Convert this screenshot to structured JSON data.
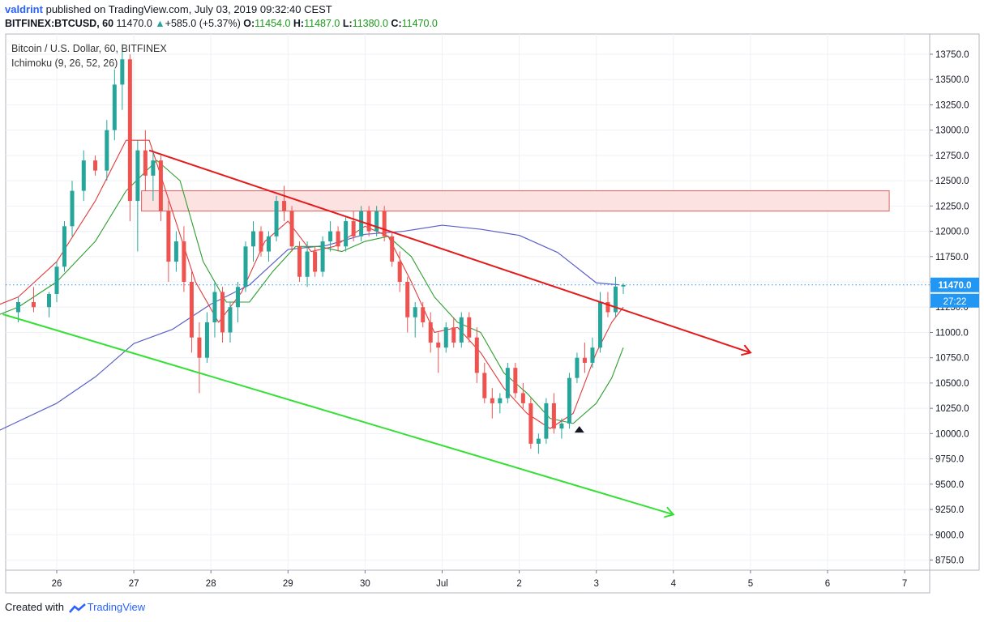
{
  "header": {
    "user": "valdrint",
    "published_text": "published on TradingView.com, July 03, 2019 09:32:40 CEST",
    "symbol": "BITFINEX:BTCUSD, 60",
    "last": "11470.0",
    "change": "+585.0 (+5.37%)",
    "open_label": "O:",
    "open": "11454.0",
    "high_label": "H:",
    "high": "11487.0",
    "low_label": "L:",
    "low": "11380.0",
    "close_label": "C:",
    "close": "11470.0"
  },
  "legend": {
    "title": "Bitcoin / U.S. Dollar, 60, BITFINEX",
    "indicator": "Ichimoku (9, 26, 52, 26)"
  },
  "price_label": "11470.0",
  "countdown_label": "27:22",
  "footer": {
    "created_with": "Created with",
    "brand": "TradingView"
  },
  "colors": {
    "up": "#26a69a",
    "down": "#ef5350",
    "resistance_line": "#e51a1a",
    "support_line": "#35e035",
    "ma_blue": "#5b5fc7",
    "tenkan": "#e03c3c",
    "kijun": "#2e9e2e",
    "zone_fill": "#fde2e2",
    "zone_border": "#e06060",
    "price_line": "#2196f3"
  },
  "chart_data": {
    "type": "candlestick",
    "title": "Bitcoin / U.S. Dollar, 60, BITFINEX",
    "ylim": [
      8650,
      13950
    ],
    "y_ticks": [
      "13750.0",
      "13500.0",
      "13250.0",
      "13000.0",
      "12750.0",
      "12500.0",
      "12250.0",
      "12000.0",
      "11750.0",
      "11500.0",
      "11250.0",
      "11000.0",
      "10750.0",
      "10500.0",
      "10250.0",
      "10000.0",
      "9750.0",
      "9500.0",
      "9250.0",
      "9000.0",
      "8750.0"
    ],
    "x_ticks": [
      "26",
      "27",
      "28",
      "29",
      "30",
      "Jul",
      "2",
      "3",
      "4",
      "5",
      "6",
      "7"
    ],
    "last_price": 11470.0,
    "candles": [
      {
        "d": 25.5,
        "o": 11200,
        "h": 11350,
        "l": 11100,
        "c": 11300
      },
      {
        "d": 25.7,
        "o": 11300,
        "h": 11450,
        "l": 11200,
        "c": 11250
      },
      {
        "d": 25.9,
        "o": 11250,
        "h": 11400,
        "l": 11150,
        "c": 11380
      },
      {
        "d": 26.0,
        "o": 11380,
        "h": 11700,
        "l": 11300,
        "c": 11650
      },
      {
        "d": 26.1,
        "o": 11650,
        "h": 12100,
        "l": 11600,
        "c": 12050
      },
      {
        "d": 26.2,
        "o": 12050,
        "h": 12500,
        "l": 11950,
        "c": 12400
      },
      {
        "d": 26.35,
        "o": 12400,
        "h": 12800,
        "l": 12300,
        "c": 12700
      },
      {
        "d": 26.5,
        "o": 12700,
        "h": 12750,
        "l": 12550,
        "c": 12600
      },
      {
        "d": 26.65,
        "o": 12600,
        "h": 13100,
        "l": 12500,
        "c": 13000
      },
      {
        "d": 26.75,
        "o": 13000,
        "h": 13600,
        "l": 12900,
        "c": 13450
      },
      {
        "d": 26.85,
        "o": 13450,
        "h": 13850,
        "l": 13200,
        "c": 13700
      },
      {
        "d": 26.95,
        "o": 13700,
        "h": 13750,
        "l": 12100,
        "c": 12300
      },
      {
        "d": 27.05,
        "o": 12300,
        "h": 12900,
        "l": 11800,
        "c": 12800
      },
      {
        "d": 27.15,
        "o": 12800,
        "h": 13000,
        "l": 12400,
        "c": 12550
      },
      {
        "d": 27.25,
        "o": 12550,
        "h": 12800,
        "l": 12300,
        "c": 12700
      },
      {
        "d": 27.35,
        "o": 12700,
        "h": 12750,
        "l": 12100,
        "c": 12200
      },
      {
        "d": 27.45,
        "o": 12200,
        "h": 12300,
        "l": 11500,
        "c": 11700
      },
      {
        "d": 27.55,
        "o": 11700,
        "h": 12000,
        "l": 11600,
        "c": 11900
      },
      {
        "d": 27.65,
        "o": 11900,
        "h": 12050,
        "l": 11400,
        "c": 11500
      },
      {
        "d": 27.75,
        "o": 11500,
        "h": 11600,
        "l": 10800,
        "c": 10950
      },
      {
        "d": 27.85,
        "o": 10950,
        "h": 11100,
        "l": 10400,
        "c": 10750
      },
      {
        "d": 27.95,
        "o": 10750,
        "h": 11200,
        "l": 10700,
        "c": 11100
      },
      {
        "d": 28.05,
        "o": 11100,
        "h": 11500,
        "l": 10950,
        "c": 11400
      },
      {
        "d": 28.15,
        "o": 11400,
        "h": 11450,
        "l": 10900,
        "c": 11000
      },
      {
        "d": 28.25,
        "o": 11000,
        "h": 11300,
        "l": 10900,
        "c": 11250
      },
      {
        "d": 28.35,
        "o": 11250,
        "h": 11500,
        "l": 11100,
        "c": 11450
      },
      {
        "d": 28.45,
        "o": 11450,
        "h": 11900,
        "l": 11400,
        "c": 11850
      },
      {
        "d": 28.55,
        "o": 11850,
        "h": 12100,
        "l": 11700,
        "c": 12000
      },
      {
        "d": 28.65,
        "o": 12000,
        "h": 12050,
        "l": 11750,
        "c": 11800
      },
      {
        "d": 28.75,
        "o": 11800,
        "h": 12000,
        "l": 11700,
        "c": 11950
      },
      {
        "d": 28.85,
        "o": 11950,
        "h": 12350,
        "l": 11900,
        "c": 12300
      },
      {
        "d": 28.95,
        "o": 12300,
        "h": 12450,
        "l": 12100,
        "c": 12200
      },
      {
        "d": 29.05,
        "o": 12200,
        "h": 12250,
        "l": 11800,
        "c": 11850
      },
      {
        "d": 29.15,
        "o": 11850,
        "h": 11900,
        "l": 11500,
        "c": 11550
      },
      {
        "d": 29.25,
        "o": 11550,
        "h": 11900,
        "l": 11450,
        "c": 11800
      },
      {
        "d": 29.35,
        "o": 11800,
        "h": 11850,
        "l": 11550,
        "c": 11600
      },
      {
        "d": 29.45,
        "o": 11600,
        "h": 11950,
        "l": 11550,
        "c": 11900
      },
      {
        "d": 29.55,
        "o": 11900,
        "h": 12100,
        "l": 11800,
        "c": 12000
      },
      {
        "d": 29.65,
        "o": 12000,
        "h": 12050,
        "l": 11800,
        "c": 11850
      },
      {
        "d": 29.75,
        "o": 11850,
        "h": 12150,
        "l": 11800,
        "c": 12100
      },
      {
        "d": 29.85,
        "o": 12100,
        "h": 12200,
        "l": 11900,
        "c": 11950
      },
      {
        "d": 29.95,
        "o": 11950,
        "h": 12250,
        "l": 11900,
        "c": 12200
      },
      {
        "d": 30.05,
        "o": 12200,
        "h": 12250,
        "l": 11950,
        "c": 12000
      },
      {
        "d": 30.15,
        "o": 12000,
        "h": 12250,
        "l": 11950,
        "c": 12200
      },
      {
        "d": 30.25,
        "o": 12200,
        "h": 12250,
        "l": 11900,
        "c": 11950
      },
      {
        "d": 30.35,
        "o": 11950,
        "h": 12000,
        "l": 11650,
        "c": 11700
      },
      {
        "d": 30.45,
        "o": 11700,
        "h": 11800,
        "l": 11400,
        "c": 11500
      },
      {
        "d": 30.55,
        "o": 11500,
        "h": 11550,
        "l": 11000,
        "c": 11150
      },
      {
        "d": 30.65,
        "o": 11150,
        "h": 11300,
        "l": 10950,
        "c": 11250
      },
      {
        "d": 30.75,
        "o": 11250,
        "h": 11300,
        "l": 11050,
        "c": 11100
      },
      {
        "d": 30.85,
        "o": 11100,
        "h": 11200,
        "l": 10800,
        "c": 10900
      },
      {
        "d": 30.95,
        "o": 10900,
        "h": 11000,
        "l": 10600,
        "c": 10850
      },
      {
        "d": 31.05,
        "o": 10850,
        "h": 11100,
        "l": 10800,
        "c": 11050
      },
      {
        "d": 31.15,
        "o": 11050,
        "h": 11150,
        "l": 10850,
        "c": 10900
      },
      {
        "d": 31.25,
        "o": 10900,
        "h": 11200,
        "l": 10850,
        "c": 11150
      },
      {
        "d": 31.35,
        "o": 11150,
        "h": 11200,
        "l": 10900,
        "c": 10950
      },
      {
        "d": 31.45,
        "o": 10950,
        "h": 11050,
        "l": 10500,
        "c": 10600
      },
      {
        "d": 31.55,
        "o": 10600,
        "h": 10700,
        "l": 10300,
        "c": 10350
      },
      {
        "d": 31.65,
        "o": 10350,
        "h": 10450,
        "l": 10150,
        "c": 10300
      },
      {
        "d": 31.75,
        "o": 10300,
        "h": 10400,
        "l": 10200,
        "c": 10350
      },
      {
        "d": 31.85,
        "o": 10350,
        "h": 10700,
        "l": 10300,
        "c": 10650
      },
      {
        "d": 31.95,
        "o": 10650,
        "h": 10700,
        "l": 10350,
        "c": 10400
      },
      {
        "d": 32.05,
        "o": 10400,
        "h": 10500,
        "l": 10250,
        "c": 10300
      },
      {
        "d": 32.15,
        "o": 10300,
        "h": 10350,
        "l": 9850,
        "c": 9900
      },
      {
        "d": 32.25,
        "o": 9900,
        "h": 10000,
        "l": 9800,
        "c": 9950
      },
      {
        "d": 32.35,
        "o": 9950,
        "h": 10350,
        "l": 9900,
        "c": 10300
      },
      {
        "d": 32.45,
        "o": 10300,
        "h": 10400,
        "l": 10000,
        "c": 10050
      },
      {
        "d": 32.55,
        "o": 10050,
        "h": 10150,
        "l": 9950,
        "c": 10100
      },
      {
        "d": 32.65,
        "o": 10100,
        "h": 10600,
        "l": 10050,
        "c": 10550
      },
      {
        "d": 32.75,
        "o": 10550,
        "h": 10800,
        "l": 10500,
        "c": 10750
      },
      {
        "d": 32.85,
        "o": 10750,
        "h": 10900,
        "l": 10600,
        "c": 10700
      },
      {
        "d": 32.95,
        "o": 10700,
        "h": 10950,
        "l": 10650,
        "c": 10850
      },
      {
        "d": 33.05,
        "o": 10850,
        "h": 11400,
        "l": 10800,
        "c": 11300
      },
      {
        "d": 33.15,
        "o": 11300,
        "h": 11400,
        "l": 11150,
        "c": 11200
      },
      {
        "d": 33.25,
        "o": 11200,
        "h": 11550,
        "l": 11150,
        "c": 11454
      },
      {
        "d": 33.35,
        "o": 11454,
        "h": 11487,
        "l": 11380,
        "c": 11470
      }
    ],
    "series": [
      {
        "x": [
          25.4,
          25.8,
          26.2,
          26.6,
          27.0,
          27.5,
          28.0,
          28.5,
          29.0,
          29.5,
          30.0,
          30.5,
          31.0,
          31.5,
          32.0,
          32.5,
          33.0,
          33.3
        ],
        "y": [
          11290,
          11380,
          11520,
          11700,
          11900,
          12100,
          12350,
          12500,
          12500,
          12420,
          12280,
          12160,
          12060,
          11960,
          11870,
          11780,
          11720,
          11700
        ]
      }
    ],
    "ma_blue": {
      "x": [
        25.0,
        25.5,
        26.0,
        26.5,
        27.0,
        27.5,
        28.0,
        28.5,
        29.0,
        29.5,
        30.0,
        30.5,
        31.0,
        31.5,
        32.0,
        32.5,
        33.0,
        33.3
      ],
      "y": [
        9940,
        10120,
        10300,
        10560,
        10890,
        11030,
        11280,
        11470,
        11820,
        11860,
        11970,
        12000,
        12060,
        12020,
        11960,
        11790,
        11490,
        11470
      ]
    },
    "tenkan": {
      "x": [
        25.0,
        25.5,
        26.0,
        26.5,
        26.9,
        27.2,
        27.5,
        27.8,
        28.1,
        28.4,
        28.7,
        29.0,
        29.3,
        29.6,
        30.0,
        30.3,
        30.6,
        30.9,
        31.2,
        31.5,
        31.8,
        32.1,
        32.4,
        32.7,
        33.0,
        33.2,
        33.35
      ],
      "y": [
        11200,
        11350,
        11700,
        12300,
        12900,
        12900,
        12200,
        11500,
        11100,
        11400,
        11900,
        12100,
        11800,
        11850,
        12050,
        11950,
        11500,
        11000,
        11050,
        10800,
        10450,
        10200,
        10050,
        10200,
        10800,
        11100,
        11250
      ]
    },
    "kijun": {
      "x": [
        25.0,
        25.5,
        26.0,
        26.5,
        26.9,
        27.3,
        27.6,
        27.9,
        28.2,
        28.5,
        28.8,
        29.1,
        29.4,
        29.7,
        30.0,
        30.3,
        30.6,
        30.9,
        31.2,
        31.5,
        31.8,
        32.1,
        32.4,
        32.7,
        33.0,
        33.2,
        33.35
      ],
      "y": [
        11100,
        11250,
        11500,
        11900,
        12400,
        12700,
        12500,
        11700,
        11300,
        11300,
        11600,
        11850,
        11850,
        11800,
        11900,
        11950,
        11750,
        11350,
        11100,
        11000,
        10600,
        10400,
        10150,
        10100,
        10300,
        10550,
        10850
      ]
    },
    "resistance_line": {
      "x": [
        27.2,
        35.0
      ],
      "y": [
        12800,
        10800
      ]
    },
    "support_line": {
      "x": [
        25.3,
        34.0
      ],
      "y": [
        11180,
        9200
      ]
    },
    "zone": {
      "x": [
        27.1,
        36.8
      ],
      "y": [
        12200,
        12400
      ]
    }
  }
}
